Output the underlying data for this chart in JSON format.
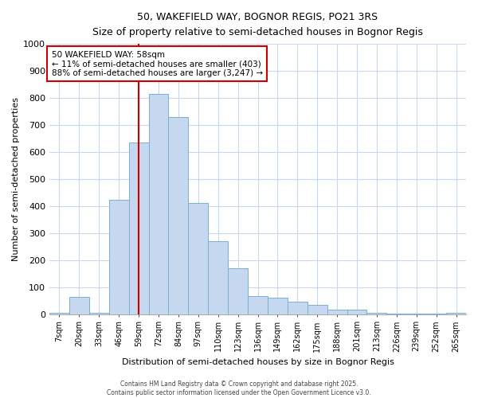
{
  "title": "50, WAKEFIELD WAY, BOGNOR REGIS, PO21 3RS",
  "subtitle": "Size of property relative to semi-detached houses in Bognor Regis",
  "xlabel": "Distribution of semi-detached houses by size in Bognor Regis",
  "ylabel": "Number of semi-detached properties",
  "categories": [
    "7sqm",
    "20sqm",
    "33sqm",
    "46sqm",
    "59sqm",
    "72sqm",
    "84sqm",
    "97sqm",
    "110sqm",
    "123sqm",
    "136sqm",
    "149sqm",
    "162sqm",
    "175sqm",
    "188sqm",
    "201sqm",
    "213sqm",
    "226sqm",
    "239sqm",
    "252sqm",
    "265sqm"
  ],
  "values": [
    5,
    62,
    5,
    422,
    635,
    815,
    730,
    410,
    270,
    170,
    65,
    60,
    45,
    35,
    15,
    15,
    5,
    3,
    3,
    3,
    5
  ],
  "bar_color": "#c5d8f0",
  "bar_edge_color": "#7aafd4",
  "grid_color": "#c8d8ee",
  "background_color": "#ffffff",
  "plot_bg_color": "#ffffff",
  "vline_x_index": 4,
  "vline_color": "#cc0000",
  "annotation_text": "50 WAKEFIELD WAY: 58sqm\n← 11% of semi-detached houses are smaller (403)\n88% of semi-detached houses are larger (3,247) →",
  "annotation_box_color": "#ffffff",
  "annotation_box_edge_color": "#cc0000",
  "footer_text": "Contains HM Land Registry data © Crown copyright and database right 2025.\nContains public sector information licensed under the Open Government Licence v3.0.",
  "ylim": [
    0,
    1000
  ],
  "yticks": [
    0,
    100,
    200,
    300,
    400,
    500,
    600,
    700,
    800,
    900,
    1000
  ]
}
